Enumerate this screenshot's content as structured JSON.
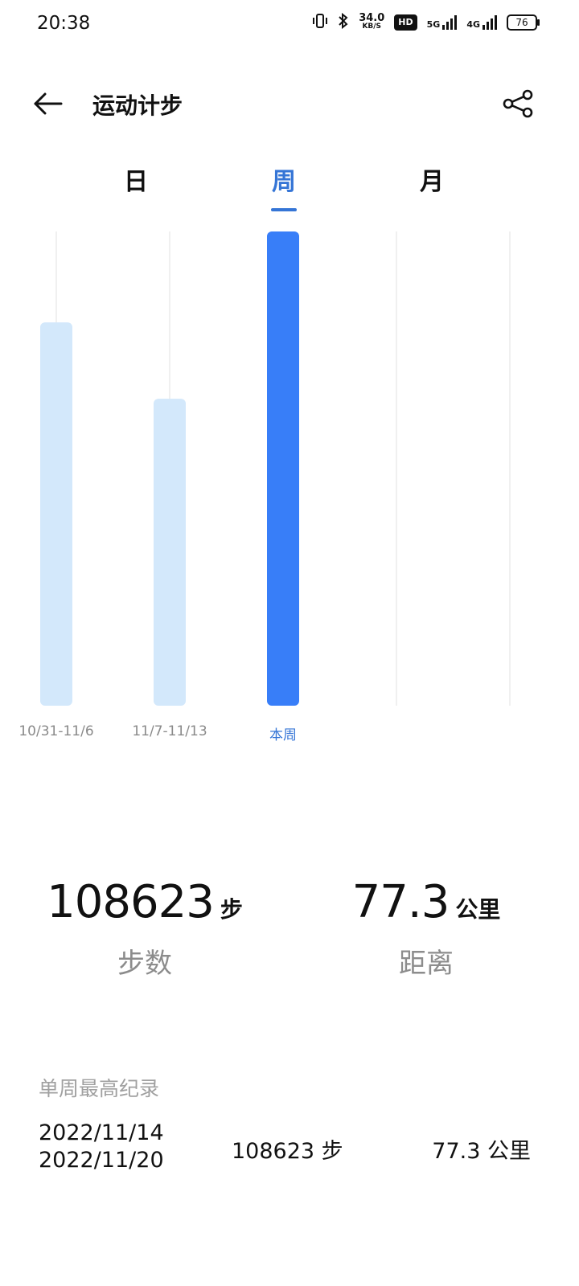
{
  "status_bar": {
    "time": "20:38",
    "speed_value": "34.0",
    "speed_unit": "KB/S",
    "hd_badge": "HD",
    "net1": "5G",
    "net2": "4G",
    "battery": "76",
    "icons": [
      "vibrate-icon",
      "bluetooth-icon",
      "signal-icon",
      "battery-icon"
    ]
  },
  "header": {
    "title": "运动计步"
  },
  "tabs": [
    {
      "label": "日"
    },
    {
      "label": "周"
    },
    {
      "label": "月"
    }
  ],
  "active_tab": "周",
  "chart_data": {
    "type": "bar",
    "categories": [
      "10/31-11/6",
      "11/7-11/13",
      "本周",
      "",
      ""
    ],
    "values": [
      87800,
      70300,
      108623,
      null,
      null
    ],
    "highlight_index": 2,
    "colors": {
      "normal": "#d3e8fb",
      "highlight": "#387ef8",
      "grid": "#ececec"
    },
    "ylim": [
      0,
      108623
    ],
    "grid": true
  },
  "stats": {
    "steps_value": "108623",
    "steps_unit": "步",
    "steps_label": "步数",
    "distance_value": "77.3",
    "distance_unit": "公里",
    "distance_label": "距离"
  },
  "record": {
    "title": "单周最高纪录",
    "date_start": "2022/11/14",
    "date_end": "2022/11/20",
    "steps": "108623 步",
    "distance": "77.3 公里"
  }
}
